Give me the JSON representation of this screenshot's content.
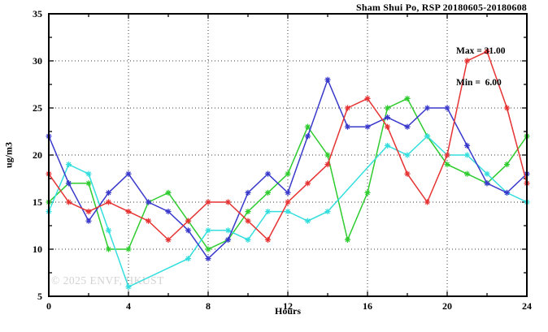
{
  "header": {
    "title": "Sham Shui Po, RSP 20180605-20180608"
  },
  "stats_box": {
    "max_label": "Max = 31.00",
    "min_label": "Min =  6.00"
  },
  "watermark": "© 2025 ENVF, HKUST",
  "axes": {
    "x_label": "Hours",
    "y_label": "ug/m3"
  },
  "chart_data": {
    "type": "line",
    "title": "Sham Shui Po, RSP 20180605-20180608",
    "xlabel": "Hours",
    "ylabel": "ug/m3",
    "xlim": [
      0,
      24
    ],
    "ylim": [
      5,
      35
    ],
    "grid": true,
    "legend_position": "none",
    "x_ticks": [
      0,
      4,
      8,
      12,
      16,
      20,
      24
    ],
    "x_minor_ticks": [
      2,
      6,
      10,
      14,
      18,
      22
    ],
    "y_ticks": [
      5,
      10,
      15,
      20,
      25,
      30,
      35
    ],
    "y_minor_ticks": [
      7.5,
      12.5,
      17.5,
      22.5,
      27.5,
      32.5
    ],
    "grid_x": [
      4,
      8,
      12,
      16,
      20
    ],
    "grid_y": [
      10,
      15,
      20,
      25,
      30
    ],
    "stats": {
      "max": 31.0,
      "min": 6.0
    },
    "x": [
      0,
      1,
      2,
      3,
      4,
      5,
      6,
      7,
      8,
      9,
      10,
      11,
      12,
      13,
      14,
      15,
      16,
      17,
      18,
      19,
      20,
      21,
      22,
      23,
      24
    ],
    "series": [
      {
        "name": "green-line",
        "color": "#2ecc2e",
        "values": [
          15,
          17,
          17,
          10,
          10,
          15,
          16,
          13,
          10,
          11,
          14,
          16,
          18,
          23,
          20,
          11,
          16,
          25,
          26,
          22,
          19,
          18,
          17,
          19,
          22
        ]
      },
      {
        "name": "cyan-line",
        "color": "#35dede",
        "values": [
          14,
          19,
          18,
          12,
          6,
          null,
          null,
          9,
          12,
          12,
          11,
          14,
          14,
          13,
          14,
          null,
          null,
          21,
          20,
          22,
          20,
          20,
          18,
          16,
          15
        ]
      },
      {
        "name": "blue-line",
        "color": "#3939cc",
        "values": [
          22,
          17,
          13,
          16,
          18,
          15,
          14,
          12,
          9,
          11,
          16,
          18,
          16,
          22,
          28,
          23,
          23,
          24,
          23,
          25,
          25,
          21,
          17,
          16,
          18
        ]
      },
      {
        "name": "red-line",
        "color": "#e63232",
        "values": [
          18,
          15,
          14,
          15,
          14,
          13,
          11,
          13,
          15,
          15,
          13,
          11,
          15,
          17,
          19,
          25,
          26,
          23,
          18,
          15,
          20,
          30,
          31,
          25,
          17
        ]
      }
    ]
  }
}
